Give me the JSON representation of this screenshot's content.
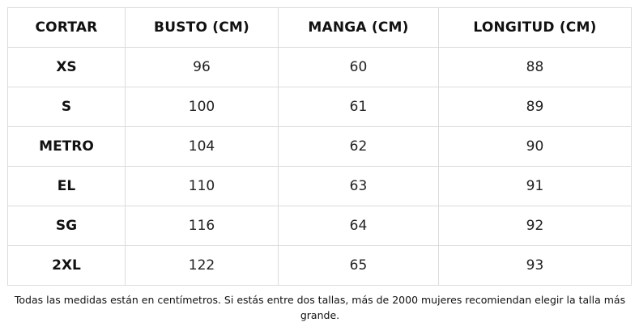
{
  "table": {
    "headers": [
      "CORTAR",
      "BUSTO (CM)",
      "MANGA (CM)",
      "LONGITUD (CM)"
    ],
    "rows": [
      {
        "size": "XS",
        "busto": "96",
        "manga": "60",
        "longitud": "88"
      },
      {
        "size": "S",
        "busto": "100",
        "manga": "61",
        "longitud": "89"
      },
      {
        "size": "METRO",
        "busto": "104",
        "manga": "62",
        "longitud": "90"
      },
      {
        "size": "EL",
        "busto": "110",
        "manga": "63",
        "longitud": "91"
      },
      {
        "size": "SG",
        "busto": "116",
        "manga": "64",
        "longitud": "92"
      },
      {
        "size": "2XL",
        "busto": "122",
        "manga": "65",
        "longitud": "93"
      }
    ]
  },
  "footnote": "Todas las medidas están en centímetros. Si estás entre dos tallas, más de 2000 mujeres recomiendan elegir la talla más grande."
}
